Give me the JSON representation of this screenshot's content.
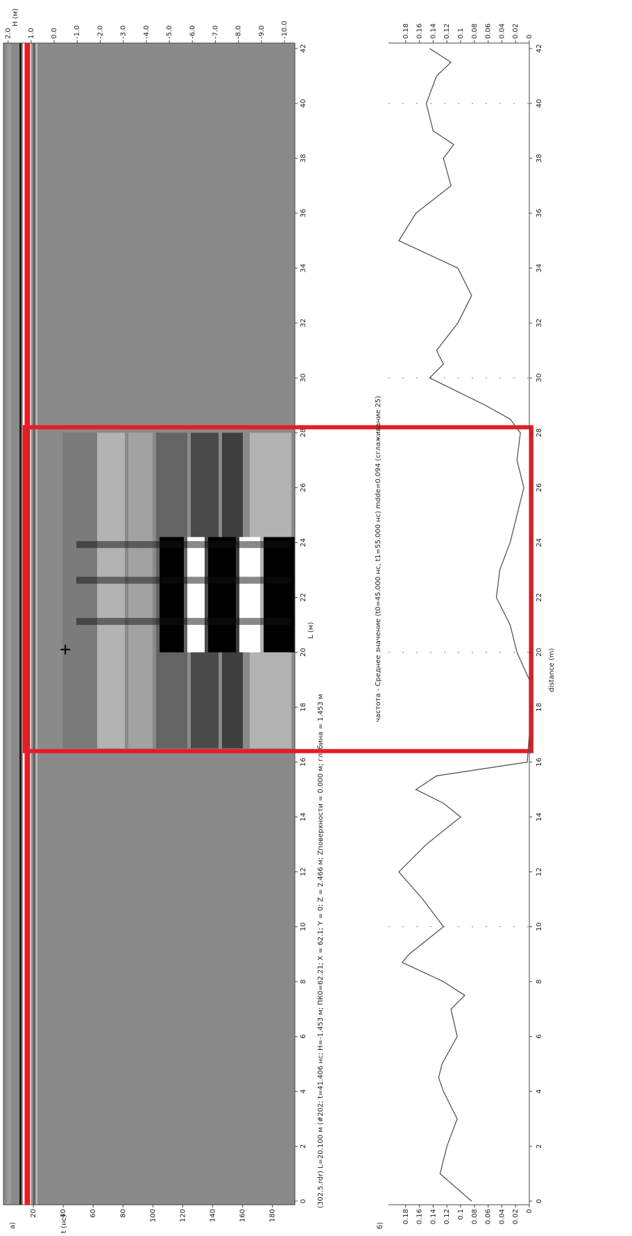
{
  "chart_data": [
    {
      "type": "radargram",
      "panel_label": "а)",
      "xlabel": "L (м)",
      "ylabel": "t (нс)",
      "y2label": "H (м)",
      "caption": "(302.5.rdr) L=20.100 м (#202; t=41.406 нс; H=-1.453 м; ПК0=62.21; X = 62.1; Y = 0; Z = 2.466 м; Zповерхности = 0.000 м; глубина = 1.453 м",
      "xlim": [
        -0.13,
        42.2
      ],
      "xticks": [
        0,
        2,
        4,
        6,
        8,
        10,
        12,
        14,
        16,
        18,
        20,
        22,
        24,
        26,
        28,
        30,
        32,
        34,
        36,
        38,
        40,
        42
      ],
      "ylim": [
        0,
        195
      ],
      "yticks": [
        20,
        40,
        60,
        80,
        100,
        120,
        140,
        160,
        180
      ],
      "y2lim": [
        2.2,
        -10.45
      ],
      "y2ticks": [
        {
          "value": 2,
          "label": "2.0"
        },
        {
          "value": 1,
          "label": "1.0"
        },
        {
          "value": 0,
          "label": "0.0"
        },
        {
          "value": -1,
          "label": "-1.0"
        },
        {
          "value": -2,
          "label": "-2.0"
        },
        {
          "value": -3,
          "label": "-3.0"
        },
        {
          "value": -4,
          "label": "-4.0"
        },
        {
          "value": -5,
          "label": "-5.0"
        },
        {
          "value": -6,
          "label": "-6.0"
        },
        {
          "value": -7,
          "label": "-7.0"
        },
        {
          "value": -8,
          "label": "-8.0"
        },
        {
          "value": -9,
          "label": "-9.0"
        },
        {
          "value": -10,
          "label": "-10.0"
        }
      ],
      "surface_line": {
        "y": 16,
        "color": "#e31e24"
      },
      "cursor": {
        "x": 20.1,
        "y": 41.406
      },
      "highlight": {
        "xlim": [
          16.4,
          28.2
        ],
        "color": "#e31e24"
      }
    },
    {
      "type": "line",
      "panel_label": "б)",
      "title": "частота - Среднее значение (t0=45.000 нс, t1=55.000 нс) mdde=0.094 (сглаживание 25)",
      "xlabel": "distance (m)",
      "xlim": [
        -0.13,
        42.2
      ],
      "xticks": [
        0,
        2,
        4,
        6,
        8,
        10,
        12,
        14,
        16,
        18,
        20,
        22,
        24,
        26,
        28,
        30,
        32,
        34,
        36,
        38,
        40,
        42
      ],
      "ylim": [
        0,
        0.205
      ],
      "yticks": [
        0,
        0.02,
        0.04,
        0.06,
        0.08,
        0.1,
        0.12,
        0.14,
        0.16,
        0.18
      ],
      "grid": true,
      "color": "#555555",
      "x": [
        0,
        1,
        2,
        3,
        4,
        4.5,
        5,
        6,
        7,
        7.5,
        8,
        8.7,
        9,
        10,
        11,
        12,
        13,
        14,
        14.5,
        15,
        15.5,
        16,
        17,
        18,
        19,
        20,
        21,
        22,
        23,
        24,
        25,
        26,
        27,
        28,
        28.5,
        29,
        30,
        30.5,
        31,
        32,
        33,
        34,
        35,
        36,
        37,
        38,
        38.5,
        39,
        40,
        41,
        41.5,
        42
      ],
      "values": [
        0.084,
        0.13,
        0.12,
        0.105,
        0.125,
        0.132,
        0.127,
        0.105,
        0.114,
        0.094,
        0.125,
        0.185,
        0.175,
        0.125,
        0.155,
        0.19,
        0.15,
        0.1,
        0.125,
        0.165,
        0.135,
        0.003,
        0,
        0,
        0,
        0.018,
        0.028,
        0.048,
        0.043,
        0.028,
        0.018,
        0.008,
        0.018,
        0.013,
        0.028,
        0.064,
        0.145,
        0.125,
        0.135,
        0.104,
        0.084,
        0.104,
        0.19,
        0.165,
        0.114,
        0.125,
        0.11,
        0.14,
        0.15,
        0.135,
        0.114,
        0.145
      ]
    }
  ]
}
